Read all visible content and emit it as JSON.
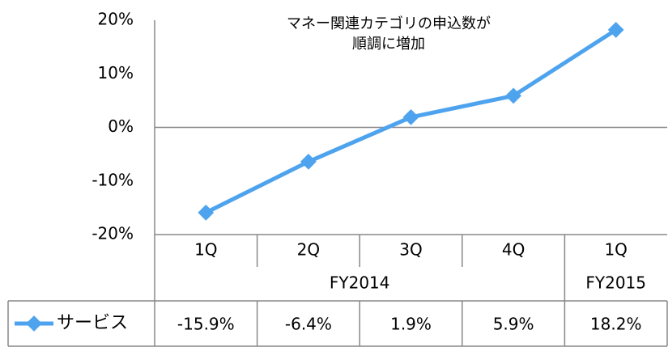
{
  "chart_data": {
    "type": "line",
    "title_lines": [
      "マネー関連カテゴリの申込数が",
      "順調に増加"
    ],
    "categories": [
      "1Q",
      "2Q",
      "3Q",
      "4Q",
      "1Q"
    ],
    "groups": [
      {
        "label": "FY2014",
        "span": 4
      },
      {
        "label": "FY2015",
        "span": 1
      }
    ],
    "series": [
      {
        "name": "サービス",
        "color": "#4ea3ee",
        "values": [
          -15.9,
          -6.4,
          1.9,
          5.9,
          18.2
        ],
        "value_labels": [
          "-15.9%",
          "-6.4%",
          "1.9%",
          "5.9%",
          "18.2%"
        ]
      }
    ],
    "ylim": [
      -20,
      20
    ],
    "yticks": [
      {
        "value": -20,
        "label": "-20%"
      },
      {
        "value": -10,
        "label": "-10%"
      },
      {
        "value": 0,
        "label": "0%"
      },
      {
        "value": 10,
        "label": "10%"
      },
      {
        "value": 20,
        "label": "20%"
      }
    ],
    "grid": false
  }
}
